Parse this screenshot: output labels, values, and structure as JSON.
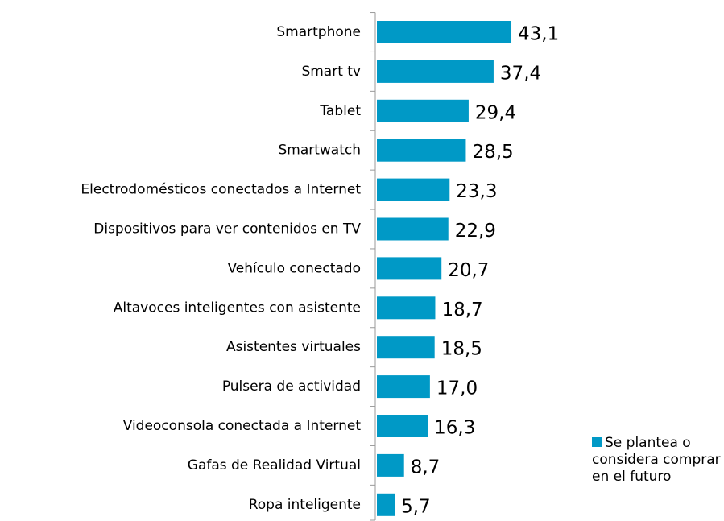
{
  "chart_data": {
    "type": "bar",
    "orientation": "horizontal",
    "categories": [
      "Smartphone",
      "Smart tv",
      "Tablet",
      "Smartwatch",
      "Electrodomésticos conectados a Internet",
      "Dispositivos para ver contenidos en TV",
      "Vehículo conectado",
      "Altavoces inteligentes con asistente",
      "Asistentes virtuales",
      "Pulsera de actividad",
      "Videoconsola conectada a Internet",
      "Gafas de Realidad Virtual",
      "Ropa inteligente"
    ],
    "series": [
      {
        "name": "Se plantea o considera comprar en el futuro",
        "color": "#0099c6",
        "values": [
          43.1,
          37.4,
          29.4,
          28.5,
          23.3,
          22.9,
          20.7,
          18.7,
          18.5,
          17.0,
          16.3,
          8.7,
          5.7
        ],
        "value_labels": [
          "43,1",
          "37,4",
          "29,4",
          "28,5",
          "23,3",
          "22,9",
          "20,7",
          "18,7",
          "18,5",
          "17,0",
          "16,3",
          "8,7",
          "5,7"
        ]
      }
    ],
    "legend": "bottom-right"
  }
}
